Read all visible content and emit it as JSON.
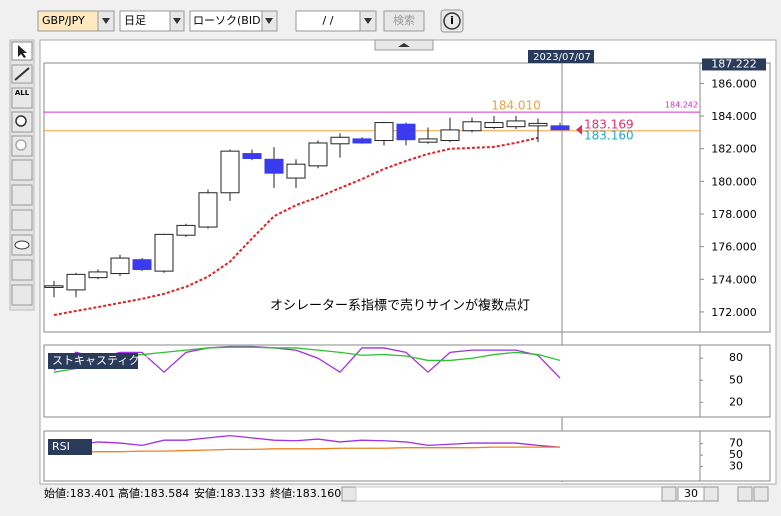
{
  "toolbar": {
    "symbol": "GBP/JPY",
    "period": "日足",
    "chart_type": "ローソク(BID)",
    "date": "/ /",
    "search": "検索",
    "info": "i"
  },
  "side_tools": {
    "all": "ALL"
  },
  "chart_data": [
    {
      "type": "candlestick",
      "date_marker": "2023/07/07",
      "categories": [
        null,
        null,
        null,
        null,
        null,
        null,
        null,
        null,
        null,
        null,
        null,
        null,
        null,
        null,
        null,
        null,
        null,
        null,
        null,
        null,
        null,
        null,
        null,
        null
      ],
      "open": [
        173.5,
        173.35,
        174.1,
        174.35,
        175.2,
        174.5,
        176.7,
        177.2,
        179.3,
        181.7,
        181.35,
        180.2,
        180.95,
        182.3,
        182.6,
        182.5,
        183.5,
        182.4,
        182.5,
        183.1,
        183.3,
        183.35,
        183.4,
        183.401
      ],
      "high": [
        173.9,
        174.4,
        174.6,
        175.5,
        175.3,
        176.8,
        177.4,
        179.5,
        181.95,
        181.95,
        182.1,
        181.35,
        182.5,
        182.95,
        182.7,
        183.65,
        183.6,
        183.3,
        183.9,
        183.9,
        184.0,
        184.01,
        183.85,
        183.584
      ],
      "low": [
        172.9,
        172.9,
        174.0,
        174.2,
        174.5,
        174.4,
        176.6,
        177.1,
        178.8,
        181.3,
        179.6,
        179.6,
        180.8,
        181.45,
        182.3,
        182.2,
        182.2,
        182.3,
        182.4,
        183.0,
        183.2,
        183.2,
        182.4,
        183.133
      ],
      "close": [
        173.6,
        174.3,
        174.45,
        175.3,
        174.6,
        176.75,
        177.3,
        179.3,
        181.85,
        181.4,
        180.5,
        181.05,
        182.35,
        182.7,
        182.35,
        183.6,
        182.55,
        182.6,
        183.15,
        183.65,
        183.6,
        183.7,
        183.55,
        183.16
      ],
      "up_color": "#ffffff",
      "down_color": "#3a3aee",
      "ma": {
        "color": "#e02020",
        "values": [
          171.81,
          172.06,
          172.3,
          172.55,
          172.8,
          173.11,
          173.54,
          174.16,
          175.08,
          176.5,
          177.86,
          178.54,
          179.03,
          179.59,
          180.14,
          180.76,
          181.25,
          181.68,
          181.99,
          182.05,
          182.11,
          182.36,
          182.67,
          null
        ]
      },
      "hlines": [
        {
          "value": 184.242,
          "color": "#cc33cc"
        },
        {
          "value": 183.1,
          "color": "#f0a040"
        }
      ],
      "annotations": [
        {
          "text": "184.010",
          "color": "#f0a040"
        },
        {
          "text": "183.169",
          "color": "#e0306a"
        },
        {
          "text": "183.160",
          "color": "#20a8c8"
        },
        {
          "text": "オシレーター系指標で売りサインが複数点灯",
          "color": "#000000"
        }
      ],
      "ylim": [
        170.77,
        187.25
      ],
      "yticks": [
        {
          "value": 172,
          "label": "172.000"
        },
        {
          "value": 174,
          "label": "174.000"
        },
        {
          "value": 176,
          "label": "176.000"
        },
        {
          "value": 178,
          "label": "178.000"
        },
        {
          "value": 180,
          "label": "180.000"
        },
        {
          "value": 182,
          "label": "182.000"
        },
        {
          "value": 184,
          "label": "184.000"
        },
        {
          "value": 186,
          "label": "186.000"
        },
        {
          "value": 187.222,
          "label": "187.222"
        }
      ]
    },
    {
      "type": "line",
      "title": "ストキャスティクス",
      "ylim": [
        0,
        98
      ],
      "yticks": [
        80,
        50,
        20
      ],
      "series": [
        {
          "color": "#a030e0",
          "values": [
            63.6,
            88.2,
            80,
            88,
            88,
            61,
            88,
            94,
            96,
            96,
            94,
            91,
            80,
            61,
            94,
            94,
            88,
            61,
            88,
            91,
            91,
            91,
            84,
            53
          ]
        },
        {
          "color": "#30c030",
          "values": [
            61,
            66,
            75,
            83,
            85,
            88,
            91,
            94,
            95,
            95,
            94,
            94,
            91,
            88,
            84,
            85,
            83,
            77,
            77,
            80,
            85,
            88,
            85,
            77
          ]
        }
      ]
    },
    {
      "type": "line",
      "title": "RSI",
      "ylim": [
        5,
        92
      ],
      "yticks": [
        70,
        50,
        30
      ],
      "series": [
        {
          "color": "#a030e0",
          "values": [
            63.6,
            67,
            73,
            71,
            67,
            76,
            76,
            80,
            84,
            80,
            76,
            75,
            78,
            73,
            76,
            75,
            73,
            67,
            69,
            71,
            71,
            71,
            67,
            64
          ]
        },
        {
          "color": "#f08020",
          "values": [
            55,
            55,
            56,
            56,
            57,
            57,
            58,
            59,
            60,
            60,
            61,
            61,
            61,
            62,
            62,
            62,
            63,
            63,
            63,
            63,
            64,
            64,
            64,
            64
          ]
        }
      ]
    }
  ],
  "status_bar": {
    "open": "始値:183.401",
    "high": "高値:183.584",
    "low": "安値:183.133",
    "close": "終値:183.160",
    "count": "30"
  }
}
